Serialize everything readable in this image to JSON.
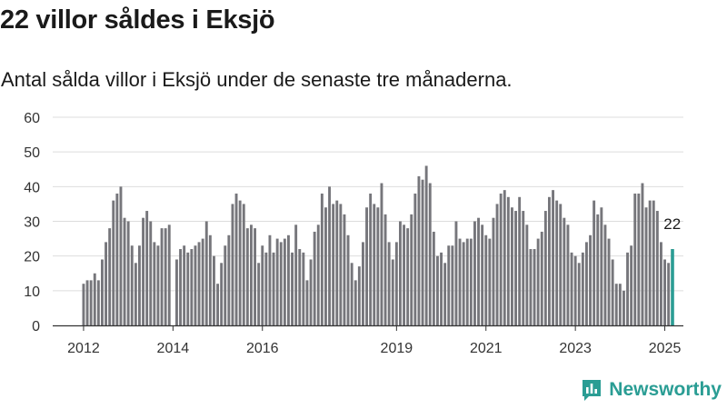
{
  "title": "22 villor såldes i Eksjö",
  "subtitle": "Antal sålda villor i Eksjö under de senaste tre månaderna.",
  "brand": "Newsworthy",
  "colors": {
    "bar": "#76767b",
    "highlight": "#2a9d94",
    "grid": "#dddddd",
    "axis": "#333333",
    "text": "#333333"
  },
  "chart_data": {
    "type": "bar",
    "ylim": [
      0,
      60
    ],
    "yticks": [
      "0",
      "10",
      "20",
      "30",
      "40",
      "50",
      "60"
    ],
    "xticks": [
      {
        "label": "2012",
        "index": 0
      },
      {
        "label": "2014",
        "index": 24
      },
      {
        "label": "2016",
        "index": 48
      },
      {
        "label": "2019",
        "index": 84
      },
      {
        "label": "2021",
        "index": 108
      },
      {
        "label": "2023",
        "index": 132
      },
      {
        "label": "2025",
        "index": 156
      }
    ],
    "values": [
      12,
      13,
      13,
      15,
      13,
      19,
      24,
      28,
      36,
      38,
      40,
      31,
      30,
      23,
      18,
      23,
      31,
      33,
      30,
      24,
      23,
      28,
      28,
      29,
      0,
      19,
      22,
      23,
      21,
      22,
      23,
      24,
      25,
      30,
      26,
      20,
      12,
      18,
      23,
      26,
      35,
      38,
      36,
      35,
      28,
      29,
      28,
      18,
      23,
      21,
      26,
      21,
      25,
      24,
      25,
      26,
      21,
      29,
      22,
      21,
      13,
      19,
      27,
      29,
      38,
      34,
      40,
      35,
      36,
      35,
      32,
      26,
      18,
      13,
      17,
      24,
      34,
      38,
      35,
      34,
      41,
      32,
      24,
      19,
      24,
      30,
      29,
      28,
      32,
      38,
      43,
      42,
      46,
      41,
      27,
      20,
      21,
      18,
      23,
      23,
      30,
      25,
      24,
      25,
      25,
      30,
      31,
      29,
      26,
      25,
      31,
      35,
      38,
      39,
      37,
      34,
      33,
      37,
      33,
      29,
      22,
      22,
      25,
      27,
      33,
      37,
      39,
      36,
      35,
      31,
      29,
      21,
      20,
      18,
      21,
      24,
      26,
      36,
      32,
      34,
      29,
      25,
      19,
      12,
      12,
      10,
      21,
      23,
      38,
      38,
      41,
      34,
      36,
      36,
      33,
      24,
      19,
      18,
      22
    ],
    "highlight_index": 158,
    "highlight_label": "22"
  }
}
